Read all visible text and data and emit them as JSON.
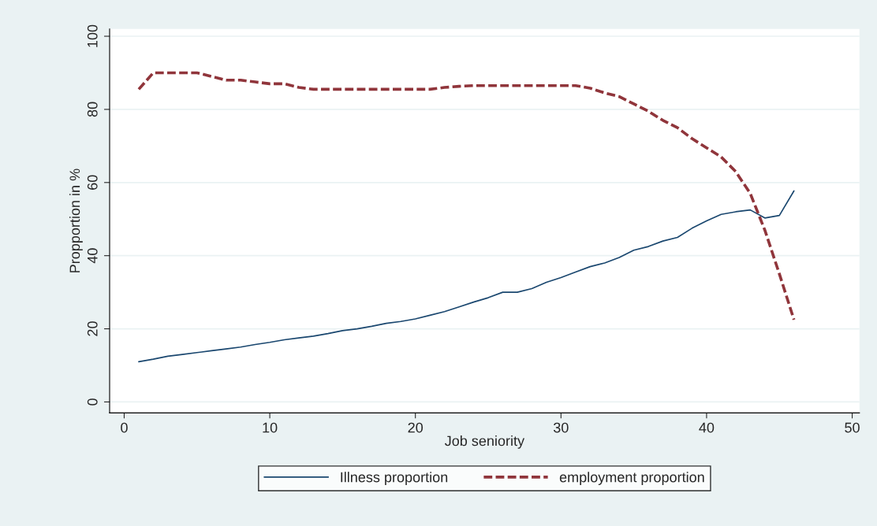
{
  "chart_data": {
    "type": "line",
    "xlabel": "Job seniority",
    "ylabel": "Propportion in %",
    "x": [
      1,
      2,
      3,
      4,
      5,
      6,
      7,
      8,
      9,
      10,
      11,
      12,
      13,
      14,
      15,
      16,
      17,
      18,
      19,
      20,
      21,
      22,
      23,
      24,
      25,
      26,
      27,
      28,
      29,
      30,
      31,
      32,
      33,
      34,
      35,
      36,
      37,
      38,
      39,
      40,
      41,
      42,
      43,
      44,
      45,
      46
    ],
    "series": [
      {
        "name": "Illness proportion",
        "color": "#1a476f",
        "line_style": "solid",
        "values": [
          11,
          11.7,
          12.5,
          13,
          13.5,
          14,
          14.5,
          15,
          15.7,
          16.3,
          17,
          17.5,
          18,
          18.7,
          19.5,
          20,
          20.7,
          21.5,
          22,
          22.7,
          23.7,
          24.7,
          26,
          27.3,
          28.5,
          30,
          30,
          31,
          32.7,
          34,
          35.5,
          37,
          38,
          39.5,
          41.5,
          42.5,
          44,
          45,
          47.5,
          49.5,
          51.3,
          52,
          52.5,
          50.3,
          51,
          57.7
        ]
      },
      {
        "name": "employment proportion",
        "color": "#90353b",
        "line_style": "dashed",
        "values": [
          85.5,
          90,
          90,
          90,
          90,
          89,
          88,
          88,
          87.5,
          87,
          87,
          86,
          85.5,
          85.5,
          85.5,
          85.5,
          85.5,
          85.5,
          85.5,
          85.5,
          85.5,
          86,
          86.3,
          86.5,
          86.5,
          86.5,
          86.5,
          86.5,
          86.5,
          86.5,
          86.5,
          85.8,
          84.5,
          83.5,
          81.5,
          79.5,
          77,
          75,
          72,
          69.5,
          67,
          63,
          57,
          47,
          35,
          22.5
        ]
      }
    ],
    "xlim": [
      -1,
      50.5
    ],
    "ylim": [
      -3,
      102
    ],
    "xticks": [
      0,
      10,
      20,
      30,
      40,
      50
    ],
    "yticks": [
      0,
      20,
      40,
      60,
      80,
      100
    ],
    "grid": "y",
    "legend": "bottom"
  }
}
